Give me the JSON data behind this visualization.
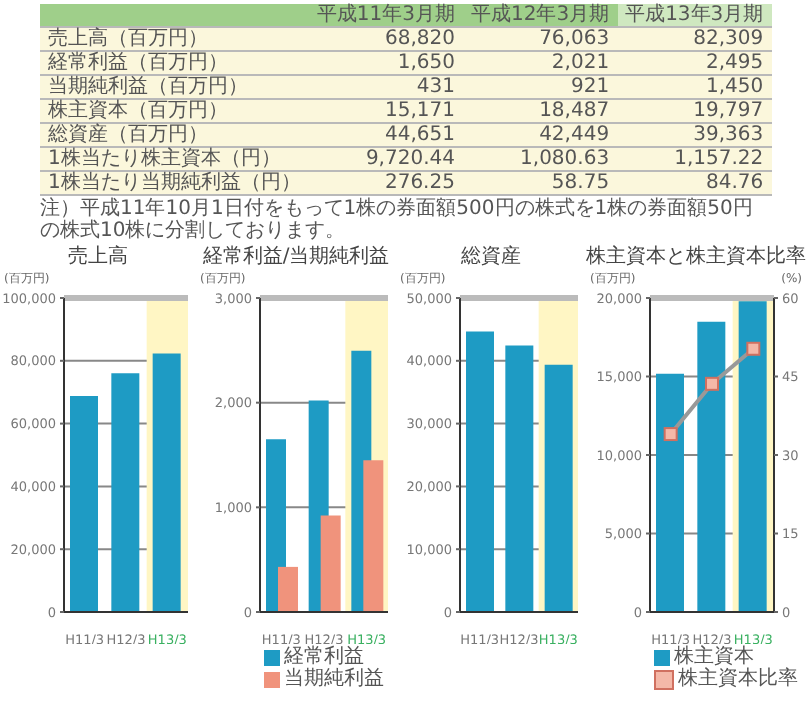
{
  "chart_data": [
    {
      "type": "other",
      "categories": [
        "平成11年3月期",
        "平成12年3月期",
        "平成13年3月期"
      ],
      "y_categories": [
        "売上高（百万円）",
        "経常利益（百万円）",
        "当期純利益（百万円）",
        "株主資本（百万円）",
        "総資産（百万円）",
        "1株当たり株主資本（円）",
        "1株当たり当期純利益（円）"
      ],
      "cell_labels": [
        [
          "68,820",
          "76,063",
          "82,309"
        ],
        [
          "1,650",
          "2,021",
          "2,495"
        ],
        [
          "431",
          "921",
          "1,450"
        ],
        [
          "15,171",
          "18,487",
          "19,797"
        ],
        [
          "44,651",
          "42,449",
          "39,363"
        ],
        [
          "9,720.44",
          "1,080.63",
          "1,157.22"
        ],
        [
          "276.25",
          "58.75",
          "84.76"
        ]
      ],
      "annotations": [
        "注）平成11年10月1日付をもって1株の券面額500円の株式を1株の券面額50円の株式10株に分割しております。"
      ]
    },
    {
      "type": "bar",
      "title": "売上高",
      "ylabel": "(百万円)",
      "categories": [
        "H11/3",
        "H12/3",
        "H13/3"
      ],
      "series": [
        {
          "color": "#1e9bc4",
          "values": [
            68820,
            76063,
            82309
          ]
        }
      ],
      "ylim": [
        0,
        100000
      ],
      "yticks": [
        {
          "value": 0,
          "label": "0"
        },
        {
          "value": 20000,
          "label": "20,000"
        },
        {
          "value": 40000,
          "label": "40,000"
        },
        {
          "value": 60000,
          "label": "60,000"
        },
        {
          "value": 80000,
          "label": "80,000"
        },
        {
          "value": 100000,
          "label": "100,000"
        }
      ],
      "grid": "y",
      "bands": [
        {
          "axis": "x",
          "from": "H13/3",
          "to": "H13/3",
          "color": "#fff6c4"
        }
      ]
    },
    {
      "type": "bar",
      "title": "経常利益/当期純利益",
      "ylabel": "(百万円)",
      "categories": [
        "H11/3",
        "H12/3",
        "H13/3"
      ],
      "series": [
        {
          "name": "経常利益",
          "color": "#1e9bc4",
          "values": [
            1650,
            2021,
            2495
          ]
        },
        {
          "name": "当期純利益",
          "color": "#f0937c",
          "values": [
            431,
            921,
            1450
          ]
        }
      ],
      "ylim": [
        0,
        3000
      ],
      "yticks": [
        {
          "value": 0,
          "label": "0"
        },
        {
          "value": 1000,
          "label": "1,000"
        },
        {
          "value": 2000,
          "label": "2,000"
        },
        {
          "value": 3000,
          "label": "3,000"
        }
      ],
      "grid": "y",
      "legend": "bottom",
      "bands": [
        {
          "axis": "x",
          "from": "H13/3",
          "to": "H13/3",
          "color": "#fff6c4"
        }
      ]
    },
    {
      "type": "bar",
      "title": "総資産",
      "ylabel": "(百万円)",
      "categories": [
        "H11/3",
        "H12/3",
        "H13/3"
      ],
      "series": [
        {
          "color": "#1e9bc4",
          "values": [
            44651,
            42449,
            39363
          ]
        }
      ],
      "ylim": [
        0,
        50000
      ],
      "yticks": [
        {
          "value": 0,
          "label": "0"
        },
        {
          "value": 10000,
          "label": "10,000"
        },
        {
          "value": 20000,
          "label": "20,000"
        },
        {
          "value": 30000,
          "label": "30,000"
        },
        {
          "value": 40000,
          "label": "40,000"
        },
        {
          "value": 50000,
          "label": "50,000"
        }
      ],
      "grid": "y",
      "bands": [
        {
          "axis": "x",
          "from": "H13/3",
          "to": "H13/3",
          "color": "#fff6c4"
        }
      ]
    },
    {
      "type": "bar",
      "title": "株主資本と株主資本比率",
      "ylabel": "(百万円)",
      "y2label": "(%)",
      "categories": [
        "H11/3",
        "H12/3",
        "H13/3"
      ],
      "series": [
        {
          "name": "株主資本",
          "color": "#1e9bc4",
          "values": [
            15171,
            18487,
            19797
          ]
        },
        {
          "name": "株主資本比率",
          "type": "line",
          "axis": "y2",
          "color": "#999999",
          "values": [
            34.0,
            43.6,
            50.3
          ]
        }
      ],
      "ylim": [
        0,
        20000
      ],
      "yticks": [
        {
          "value": 0,
          "label": "0"
        },
        {
          "value": 5000,
          "label": "5,000"
        },
        {
          "value": 10000,
          "label": "10,000"
        },
        {
          "value": 15000,
          "label": "15,000"
        },
        {
          "value": 20000,
          "label": "20,000"
        }
      ],
      "y2lim": [
        0,
        60
      ],
      "y2ticks": [
        0,
        15,
        30,
        45,
        60
      ],
      "grid": "y",
      "legend": "bottom",
      "marker": "square",
      "bands": [
        {
          "axis": "x",
          "from": "H13/3",
          "to": "H13/3",
          "color": "#fff6c4"
        }
      ]
    }
  ]
}
